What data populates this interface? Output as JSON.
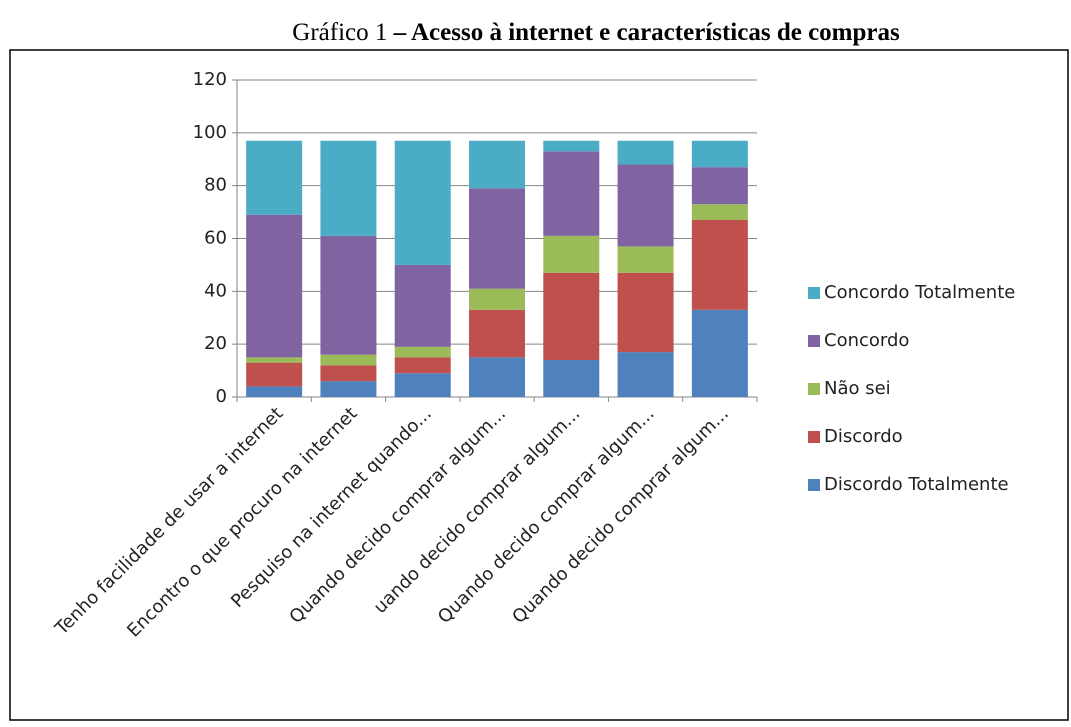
{
  "chart_data": {
    "type": "stacked_bar",
    "title": [
      "Gráfico 1",
      "– Acesso à internet e características de compras"
    ],
    "categories": [
      "Tenho facilidade de usar a internet",
      "Encontro o que procuro na internet",
      "Pesquiso na internet quando...",
      "Quando decido comprar algum...",
      "uando decido comprar algum...",
      "Quando decido comprar algum...",
      "Quando decido comprar algum..."
    ],
    "series": [
      {
        "name": "Discordo Totalmente",
        "color": "#4f81bd",
        "values": [
          4,
          6,
          9,
          15,
          14,
          17,
          33
        ]
      },
      {
        "name": "Discordo",
        "color": "#c0504d",
        "values": [
          9,
          6,
          6,
          18,
          33,
          30,
          34
        ]
      },
      {
        "name": "Não sei",
        "color": "#9bbb59",
        "values": [
          2,
          4,
          4,
          8,
          14,
          10,
          6
        ]
      },
      {
        "name": "Concordo",
        "color": "#8064a2",
        "values": [
          54,
          45,
          31,
          38,
          32,
          31,
          14
        ]
      },
      {
        "name": "Concordo Totalmente",
        "color": "#4bacc6",
        "values": [
          28,
          36,
          47,
          18,
          4,
          9,
          10
        ]
      }
    ],
    "ylim": [
      0,
      120
    ],
    "yticks": [
      0,
      20,
      40,
      60,
      80,
      100,
      120
    ],
    "grid": true,
    "legend": "right"
  }
}
